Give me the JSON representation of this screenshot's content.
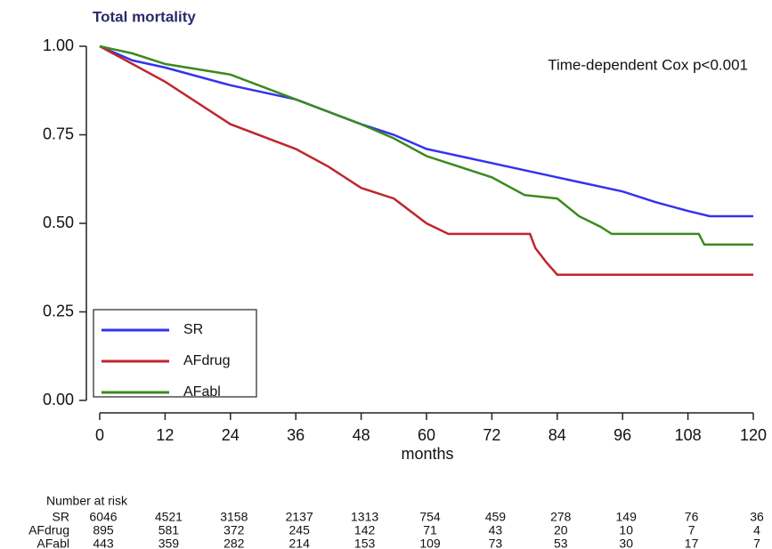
{
  "chart_data": {
    "type": "line",
    "title": "Total mortality",
    "annotation": "Time-dependent Cox p<0.001",
    "x_label": "months",
    "xlim": [
      0,
      120
    ],
    "ylim": [
      0,
      1
    ],
    "xticks": [
      0,
      12,
      24,
      36,
      48,
      60,
      72,
      84,
      96,
      108,
      120
    ],
    "yticks": [
      {
        "value": 0,
        "label": "0.00"
      },
      {
        "value": 0.25,
        "label": "0.25"
      },
      {
        "value": 0.5,
        "label": "0.50"
      },
      {
        "value": 0.75,
        "label": "0.75"
      },
      {
        "value": 1,
        "label": "1.00"
      }
    ],
    "grid": false,
    "legend": "lower left",
    "series": [
      {
        "name": "SR",
        "color": "#3333ee",
        "x": [
          0,
          6,
          12,
          24,
          36,
          48,
          54,
          60,
          72,
          84,
          96,
          102,
          108,
          112,
          120
        ],
        "values": [
          1.0,
          0.96,
          0.94,
          0.89,
          0.85,
          0.78,
          0.75,
          0.71,
          0.67,
          0.63,
          0.59,
          0.56,
          0.535,
          0.52,
          0.52
        ]
      },
      {
        "name": "AFdrug",
        "color": "#c0262d",
        "x": [
          0,
          6,
          12,
          24,
          36,
          42,
          48,
          54,
          60,
          64,
          79,
          80,
          82,
          84,
          120
        ],
        "values": [
          1.0,
          0.95,
          0.9,
          0.78,
          0.71,
          0.66,
          0.6,
          0.57,
          0.5,
          0.47,
          0.47,
          0.43,
          0.39,
          0.355,
          0.355
        ]
      },
      {
        "name": "AFabl",
        "color": "#3a8a1e",
        "x": [
          0,
          6,
          12,
          24,
          36,
          48,
          54,
          60,
          72,
          78,
          84,
          88,
          92,
          94,
          110,
          111,
          120
        ],
        "values": [
          1.0,
          0.98,
          0.95,
          0.92,
          0.85,
          0.78,
          0.74,
          0.69,
          0.63,
          0.58,
          0.57,
          0.52,
          0.49,
          0.47,
          0.47,
          0.44,
          0.44
        ]
      }
    ],
    "risk_table": {
      "title": "Number at risk",
      "rows": [
        {
          "name": "SR",
          "values": [
            "6046",
            "4521",
            "3158",
            "2137",
            "1313",
            "754",
            "459",
            "278",
            "149",
            "76",
            "36"
          ]
        },
        {
          "name": "AFdrug",
          "values": [
            "895",
            "581",
            "372",
            "245",
            "142",
            "71",
            "43",
            "20",
            "10",
            "7",
            "4"
          ]
        },
        {
          "name": "AFabl",
          "values": [
            "443",
            "359",
            "282",
            "214",
            "153",
            "109",
            "73",
            "53",
            "30",
            "17",
            "7"
          ]
        }
      ]
    }
  }
}
